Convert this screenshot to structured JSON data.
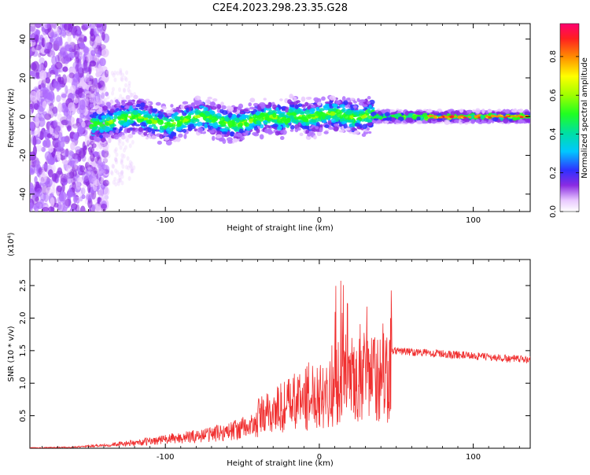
{
  "title": "C2E4.2023.298.23.35.G28",
  "chart_data": [
    {
      "type": "heatmap",
      "xlabel": "Height of straight line (km)",
      "ylabel": "Frequency (Hz)",
      "xlim": [
        -188,
        137
      ],
      "ylim": [
        -49,
        48
      ],
      "xticks": [
        -100,
        0,
        100
      ],
      "yticks": [
        -40,
        -20,
        0,
        20,
        40
      ],
      "colorbar": {
        "label": "Normalized spectral amplitude",
        "range": [
          0,
          0.97
        ],
        "ticks": [
          0.0,
          0.2,
          0.4,
          0.6,
          0.8
        ]
      }
    },
    {
      "type": "line",
      "xlabel": "Height of straight line (km)",
      "ylabel": "SNR (10 * v/v)",
      "multiplier": "(x10⁴)",
      "xlim": [
        -188,
        137
      ],
      "ylim": [
        0,
        2.9
      ],
      "xticks": [
        -100,
        0,
        100
      ],
      "yticks": [
        0.5,
        1.0,
        1.5,
        2.0,
        2.5
      ],
      "series_color": "#f03030",
      "envelope": {
        "x": [
          -188,
          -160,
          -140,
          -120,
          -100,
          -80,
          -60,
          -40,
          -20,
          -10,
          0,
          10,
          20,
          30,
          40,
          45,
          47,
          60,
          80,
          100,
          120,
          137
        ],
        "y": [
          0.01,
          0.02,
          0.06,
          0.1,
          0.17,
          0.23,
          0.32,
          0.45,
          0.65,
          0.75,
          0.85,
          0.95,
          1.0,
          1.05,
          1.05,
          1.05,
          1.5,
          1.48,
          1.45,
          1.42,
          1.38,
          1.36
        ]
      }
    }
  ]
}
